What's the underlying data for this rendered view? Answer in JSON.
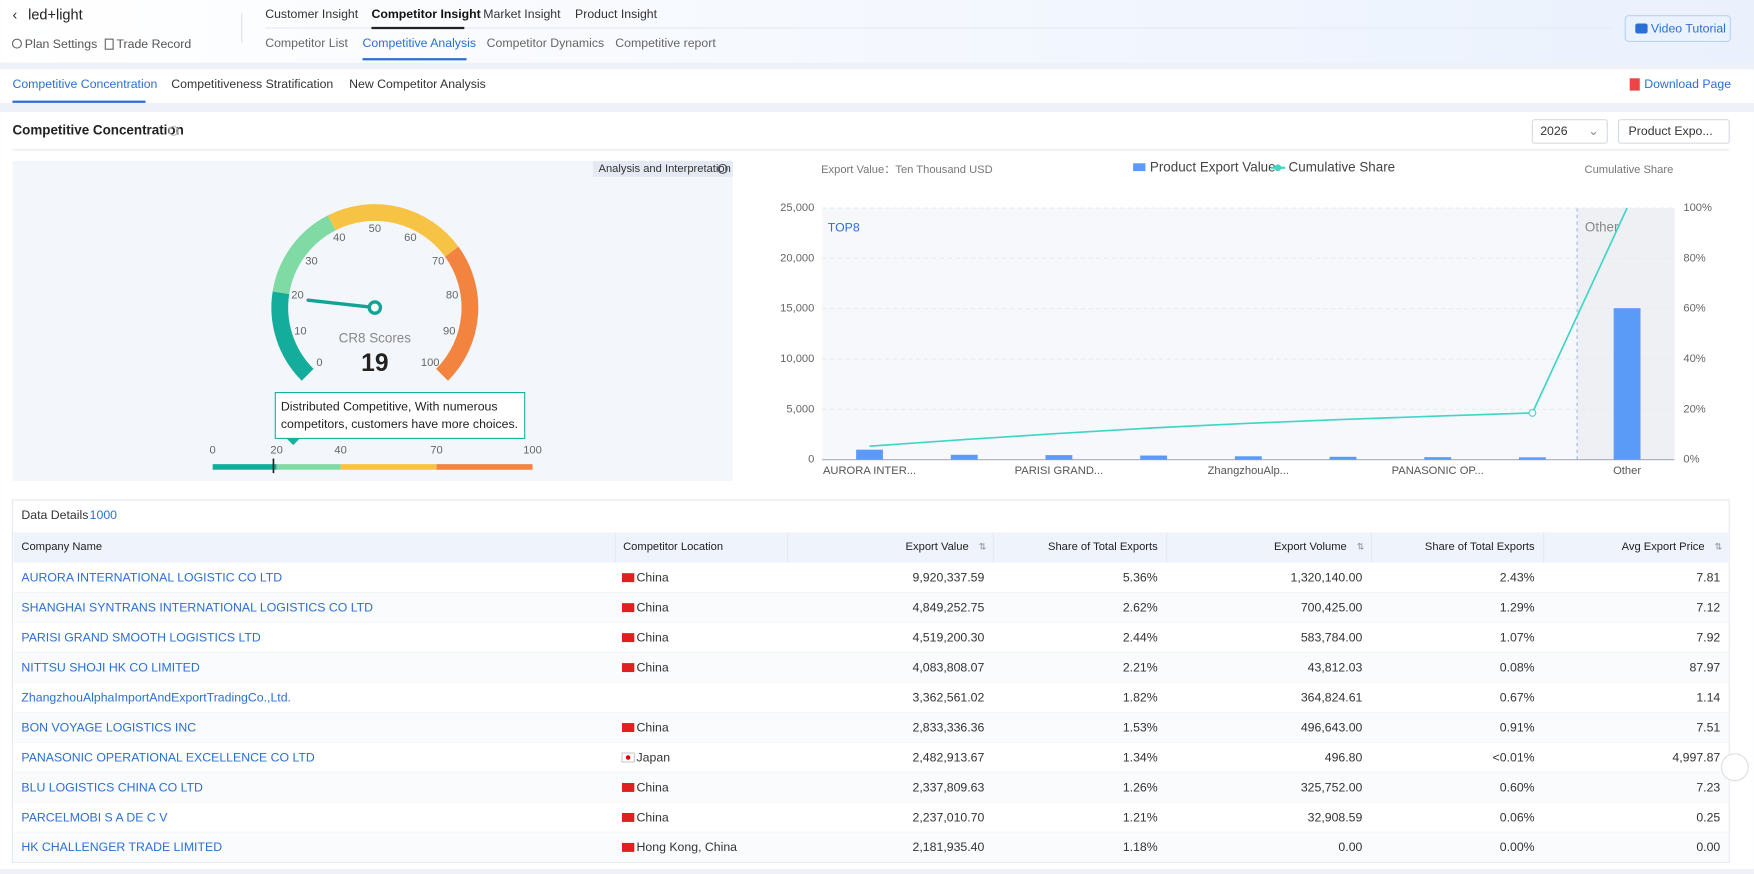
{
  "header": {
    "title": "led+light",
    "links": [
      "Plan Settings",
      "Trade Record"
    ],
    "main_tabs": [
      "Customer Insight",
      "Competitor Insight",
      "Market Insight",
      "Product Insight"
    ],
    "sub_tabs": [
      "Competitor List",
      "Competitive Analysis",
      "Competitor Dynamics",
      "Competitive report"
    ],
    "video": "Video Tutorial"
  },
  "tabs": {
    "items": [
      "Competitive Concentration",
      "Competitiveness Stratification",
      "New Competitor Analysis"
    ],
    "download": "Download Page"
  },
  "section": {
    "title": "Competitive Concentration",
    "year": "2026",
    "dropdown": "Product Expo..."
  },
  "gauge": {
    "button": "Analysis and Interpretation",
    "label": "CR8 Scores",
    "score": 19,
    "ticks": [
      0,
      10,
      20,
      30,
      40,
      50,
      60,
      70,
      80,
      90,
      100
    ],
    "tooltip": [
      "Distributed Competitive, With numerous",
      "competitors, customers have more choices."
    ],
    "scale_ticks": [
      0,
      20,
      40,
      70,
      100
    ]
  },
  "chart_data": {
    "type": "bar",
    "y_label": "Export Value：Ten Thousand USD",
    "y2_label": "Cumulative Share",
    "annotations": [
      "TOP8",
      "Other"
    ],
    "categories": [
      "AURORA INTER...",
      null,
      "PARISI GRAND...",
      null,
      "ZhangzhouAlp...",
      null,
      "PANASONIC OP...",
      null,
      "Other"
    ],
    "series": [
      {
        "name": "Product Export Value",
        "color": "#5b9bf8",
        "values": [
          992.03,
          484.93,
          451.92,
          408.38,
          336.26,
          283.33,
          248.29,
          233.78,
          15050
        ]
      },
      {
        "name": "Cumulative Share",
        "color": "#3fd6c6",
        "axis": "y2",
        "values": [
          5.36,
          7.98,
          10.42,
          12.63,
          14.45,
          15.98,
          17.32,
          18.58,
          100
        ]
      }
    ],
    "ylim": [
      0,
      25000
    ],
    "yticks": [
      0,
      {
        "value": 5000,
        "label": "5,000"
      },
      {
        "value": 10000,
        "label": "10,000"
      },
      {
        "value": 15000,
        "label": "15,000"
      },
      {
        "value": 20000,
        "label": "20,000"
      },
      {
        "value": 25000,
        "label": "25,000"
      }
    ],
    "y2lim": [
      0,
      100
    ],
    "y2ticks": [
      {
        "value": 0,
        "label": "0%"
      },
      {
        "value": 20,
        "label": "20%"
      },
      {
        "value": 40,
        "label": "40%"
      },
      {
        "value": 60,
        "label": "60%"
      },
      {
        "value": 80,
        "label": "80%"
      },
      {
        "value": 100,
        "label": "100%"
      }
    ],
    "grid": true
  },
  "table": {
    "title": "Data Details",
    "count": "1000",
    "columns": [
      "Company Name",
      "Competitor Location",
      "Export Value",
      "Share of Total Exports",
      "Export Volume",
      "Share of Total Exports",
      "Avg Export Price"
    ],
    "rows": [
      [
        "AURORA INTERNATIONAL LOGISTIC CO LTD",
        "China",
        "9,920,337.59",
        "5.36%",
        "1,320,140.00",
        "2.43%",
        "7.81"
      ],
      [
        "SHANGHAI SYNTRANS INTERNATIONAL LOGISTICS CO LTD",
        "China",
        "4,849,252.75",
        "2.62%",
        "700,425.00",
        "1.29%",
        "7.12"
      ],
      [
        "PARISI GRAND SMOOTH LOGISTICS LTD",
        "China",
        "4,519,200.30",
        "2.44%",
        "583,784.00",
        "1.07%",
        "7.92"
      ],
      [
        "NITTSU SHOJI HK CO LIMITED",
        "China",
        "4,083,808.07",
        "2.21%",
        "43,812.03",
        "0.08%",
        "87.97"
      ],
      [
        "ZhangzhouAlphaImportAndExportTradingCo.,Ltd.",
        null,
        "3,362,561.02",
        "1.82%",
        "364,824.61",
        "0.67%",
        "1.14"
      ],
      [
        "BON VOYAGE LOGISTICS INC",
        "China",
        "2,833,336.36",
        "1.53%",
        "496,643.00",
        "0.91%",
        "7.51"
      ],
      [
        "PANASONIC OPERATIONAL EXCELLENCE CO LTD",
        "Japan",
        "2,482,913.67",
        "1.34%",
        "496.80",
        "<0.01%",
        "4,997.87"
      ],
      [
        "BLU LOGISTICS CHINA CO LTD",
        "China",
        "2,337,809.63",
        "1.26%",
        "325,752.00",
        "0.60%",
        "7.23"
      ],
      [
        "PARCELMOBI S A DE C V",
        "China",
        "2,237,010.70",
        "1.21%",
        "32,908.59",
        "0.06%",
        "0.25"
      ],
      [
        "HK CHALLENGER TRADE LIMITED",
        "Hong Kong, China",
        "2,181,935.40",
        "1.18%",
        "0.00",
        "0.00%",
        "0.00"
      ]
    ]
  }
}
